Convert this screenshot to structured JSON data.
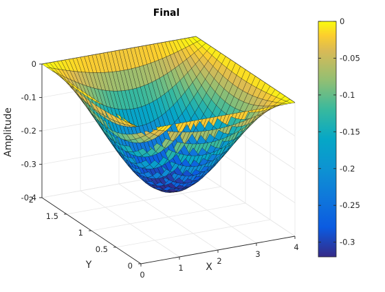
{
  "chart_data": {
    "type": "surface",
    "title": "Final",
    "xlabel": "X",
    "ylabel": "Y",
    "zlabel": "Amplitude",
    "xlim": [
      0,
      4
    ],
    "ylim": [
      0,
      2
    ],
    "zlim": [
      -0.4,
      0
    ],
    "x_ticks": [
      "0",
      "1",
      "2",
      "3",
      "4"
    ],
    "y_ticks": [
      "0",
      "0.5",
      "1",
      "1.5",
      "2"
    ],
    "z_ticks": [
      "-0.4",
      "-0.3",
      "-0.2",
      "-0.1",
      "0"
    ],
    "grid_points": {
      "x": 41,
      "y": 21
    },
    "surface_function": "z = -0.32 * sin(pi*x/4) * sin(pi*y/2)",
    "min_value": -0.32,
    "colormap": "parula",
    "colorbar": {
      "range": [
        -0.32,
        0
      ],
      "ticks": [
        "0",
        "-0.05",
        "-0.1",
        "-0.15",
        "-0.2",
        "-0.25",
        "-0.3"
      ]
    },
    "grid": true
  }
}
